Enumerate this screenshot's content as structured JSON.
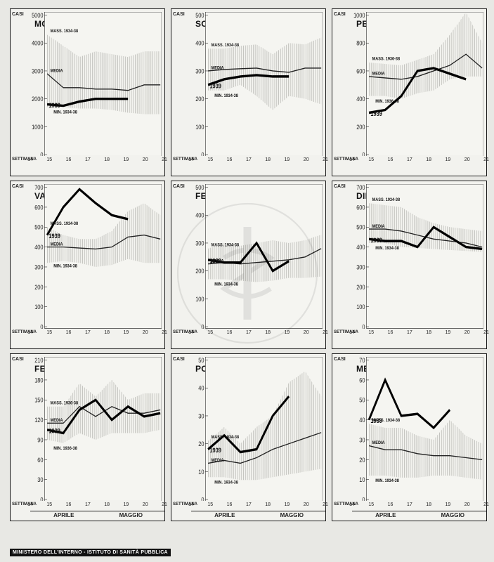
{
  "page": {
    "ylabel": "CASI",
    "x_left_label": "SETTIMANA",
    "footer": "MINISTERO DELL'INTERNO - ISTITUTO DI SANITÀ PUBBLICA",
    "background_color": "#e8e8e4",
    "panel_bg": "#f2f2ee",
    "hatch_color": "#666660",
    "median_color": "#222222",
    "main_color": "#000000",
    "watermark_text": "ISTITUTO SUPERIORE DI SANITÀ"
  },
  "xaxis": {
    "ticks": [
      14,
      15,
      16,
      17,
      18,
      19,
      20,
      21
    ],
    "months": [
      "APRILE",
      "MAGGIO"
    ],
    "split_at": 17.5
  },
  "annotations": {
    "mass": "MASS. 1934-38",
    "media": "MEDIA",
    "min": "MIN. 1934-38",
    "mass36": "MASS. 1936-38",
    "min36": "MIN. 1936-38",
    "year": "1939"
  },
  "panels": [
    {
      "title": "MORBILLO",
      "ytick_step": 1000,
      "ylim": [
        0,
        5000
      ],
      "band_max": [
        4300,
        3900,
        3500,
        3700,
        3600,
        3500,
        3700,
        3700
      ],
      "band_min": [
        1700,
        1700,
        1650,
        1650,
        1600,
        1500,
        1450,
        1450
      ],
      "median": [
        2900,
        2400,
        2400,
        2350,
        2350,
        2300,
        2500,
        2500
      ],
      "main": [
        1800,
        1750,
        1900,
        2000,
        2000,
        2000
      ],
      "annot_set": [
        "mass",
        "media",
        "min",
        "year"
      ]
    },
    {
      "title": "SCARLATTINA",
      "ytick_step": 100,
      "ylim": [
        0,
        500
      ],
      "band_max": [
        380,
        380,
        390,
        395,
        360,
        400,
        395,
        420
      ],
      "band_min": [
        230,
        230,
        250,
        210,
        160,
        210,
        200,
        180
      ],
      "median": [
        300,
        305,
        308,
        310,
        300,
        295,
        310,
        310
      ],
      "main": [
        250,
        270,
        280,
        285,
        280,
        280
      ],
      "annot_set": [
        "mass",
        "media",
        "min",
        "year"
      ]
    },
    {
      "title": "PERTOSSE",
      "ytick_step": 200,
      "ylim": [
        0,
        1000
      ],
      "band_max": [
        660,
        650,
        640,
        680,
        720,
        860,
        1020,
        800
      ],
      "band_min": [
        420,
        420,
        400,
        440,
        460,
        540,
        560,
        560
      ],
      "median": [
        560,
        550,
        540,
        560,
        600,
        640,
        720,
        620
      ],
      "main": [
        300,
        320,
        420,
        600,
        620,
        580,
        540
      ],
      "annot_set": [
        "mass36",
        "media",
        "min36",
        "year"
      ]
    },
    {
      "title": "VARICELLA",
      "ytick_step": 100,
      "ylim": [
        0,
        700
      ],
      "band_max": [
        500,
        460,
        440,
        440,
        480,
        580,
        620,
        560
      ],
      "band_min": [
        320,
        330,
        320,
        300,
        310,
        340,
        320,
        320
      ],
      "median": [
        400,
        400,
        395,
        390,
        400,
        450,
        460,
        440
      ],
      "main": [
        460,
        600,
        690,
        620,
        560,
        540
      ],
      "annot_set": [
        "mass",
        "media",
        "min",
        "year"
      ]
    },
    {
      "title": "FEBBRE TIFOIDE E INF. PAR.",
      "ytick_step": 100,
      "ylim": [
        0,
        500
      ],
      "band_max": [
        280,
        300,
        290,
        300,
        310,
        300,
        310,
        330
      ],
      "band_min": [
        170,
        170,
        165,
        160,
        165,
        175,
        175,
        180
      ],
      "median": [
        225,
        230,
        225,
        230,
        235,
        240,
        250,
        280
      ],
      "main": [
        240,
        230,
        230,
        300,
        200,
        235
      ],
      "annot_set": [
        "mass",
        "media",
        "min",
        "year"
      ]
    },
    {
      "title": "DIFTERITE",
      "ytick_step": 100,
      "ylim": [
        0,
        700
      ],
      "band_max": [
        620,
        610,
        600,
        550,
        520,
        500,
        490,
        480
      ],
      "band_min": [
        420,
        420,
        400,
        395,
        390,
        385,
        380,
        375
      ],
      "median": [
        490,
        490,
        480,
        460,
        440,
        430,
        420,
        400
      ],
      "main": [
        440,
        430,
        430,
        400,
        500,
        450,
        400,
        390
      ],
      "annot_set": [
        "mass",
        "media",
        "min",
        "year"
      ]
    },
    {
      "title": "FEBBRE ONDULANTE",
      "ytick_step": 30,
      "ylim": [
        0,
        210
      ],
      "band_max": [
        140,
        140,
        175,
        155,
        180,
        150,
        160,
        160
      ],
      "band_min": [
        90,
        85,
        100,
        90,
        100,
        100,
        100,
        105
      ],
      "median": [
        115,
        115,
        140,
        125,
        140,
        130,
        130,
        135
      ],
      "main": [
        105,
        100,
        135,
        150,
        120,
        140,
        125,
        130
      ],
      "annot_set": [
        "mass36",
        "media",
        "min36",
        "year"
      ]
    },
    {
      "title": "POLIOMIELITE ANT. AC.",
      "ytick_step": 10,
      "ylim": [
        0,
        50
      ],
      "band_max": [
        21,
        26,
        20,
        26,
        30,
        42,
        46,
        37
      ],
      "band_min": [
        8,
        8,
        7,
        7,
        8,
        9,
        10,
        11
      ],
      "median": [
        13,
        14,
        13,
        15,
        18,
        20,
        22,
        24
      ],
      "main": [
        18,
        23,
        17,
        18,
        30,
        37
      ],
      "annot_set": [
        "mass",
        "media",
        "min",
        "year"
      ]
    },
    {
      "title": "MENINGITE CER. SP. EP.",
      "ytick_step": 10,
      "ylim": [
        0,
        70
      ],
      "band_max": [
        38,
        36,
        36,
        32,
        30,
        40,
        32,
        28
      ],
      "band_min": [
        12,
        12,
        11,
        11,
        12,
        12,
        11,
        10
      ],
      "median": [
        27,
        25,
        25,
        23,
        22,
        22,
        21,
        20
      ],
      "main": [
        40,
        60,
        42,
        43,
        36,
        45
      ],
      "annot_set": [
        "mass",
        "media",
        "min",
        "year"
      ]
    }
  ]
}
